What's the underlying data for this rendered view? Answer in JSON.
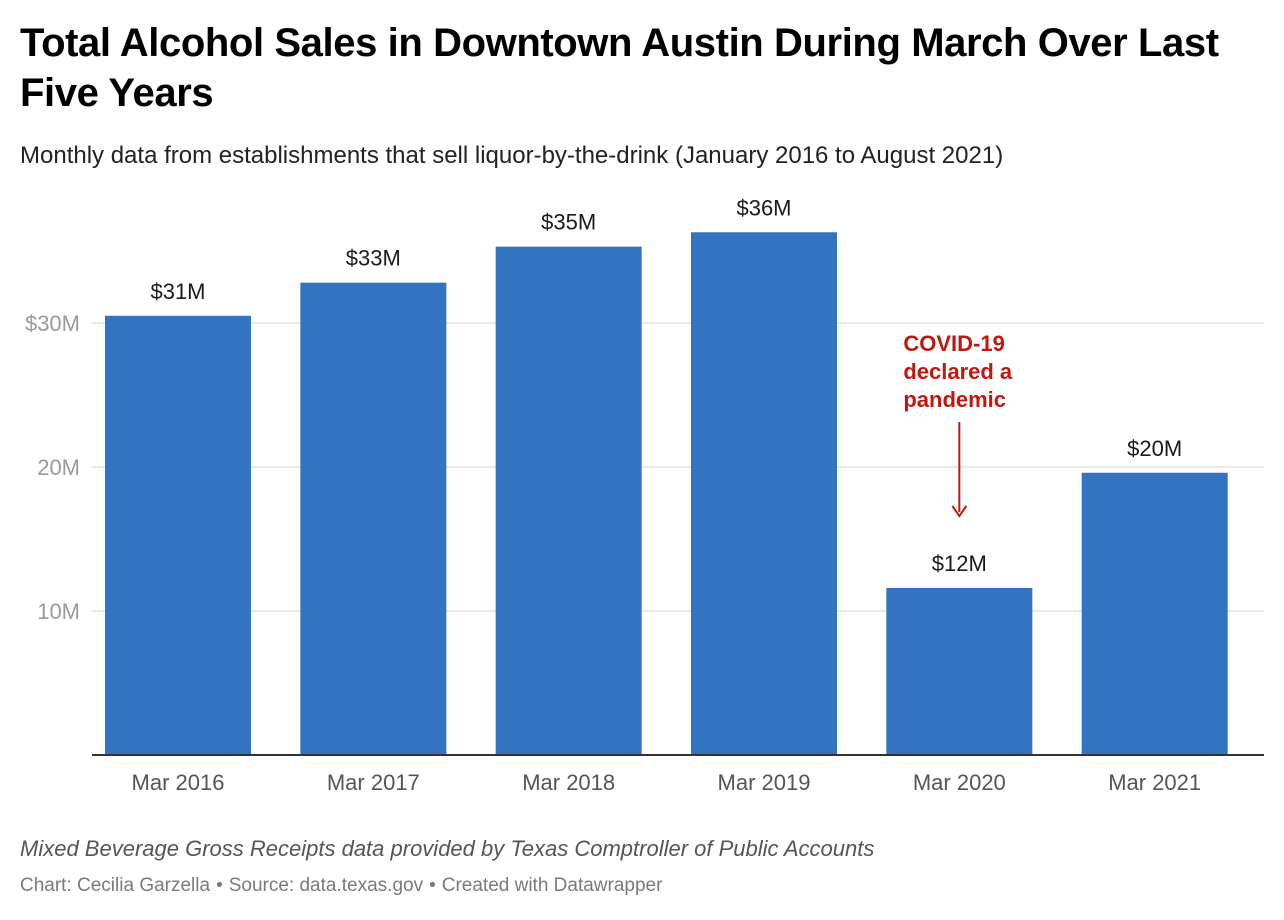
{
  "chart_data": {
    "type": "bar",
    "title": "Total Alcohol Sales in Downtown Austin During March Over Last Five Years",
    "subtitle": "Monthly data from establishments that sell liquor-by-the-drink (January 2016 to August 2021)",
    "categories": [
      "Mar 2016",
      "Mar 2017",
      "Mar 2018",
      "Mar 2019",
      "Mar 2020",
      "Mar 2021"
    ],
    "values": [
      30.5,
      32.8,
      35.3,
      36.3,
      11.6,
      19.6
    ],
    "data_labels": [
      "$31M",
      "$33M",
      "$35M",
      "$36M",
      "$12M",
      "$20M"
    ],
    "ylim": [
      0,
      37.5
    ],
    "yticks": [
      10,
      20,
      30
    ],
    "ytick_labels": [
      "10M",
      "20M",
      "$30M"
    ],
    "xlabel": "",
    "ylabel": "",
    "grid": true,
    "bar_color": "#3274c0",
    "annotation": {
      "lines": [
        "COVID-19",
        "declared a",
        "pandemic"
      ],
      "target_category": "Mar 2020",
      "color": "#c0180f"
    }
  },
  "notes": "Mixed Beverage Gross Receipts data provided by Texas Comptroller of Public Accounts",
  "footer": {
    "chart_credit": "Chart: Cecilia Garzella",
    "source": "Source: data.texas.gov",
    "created_with": "Created with Datawrapper",
    "separator": "•"
  }
}
